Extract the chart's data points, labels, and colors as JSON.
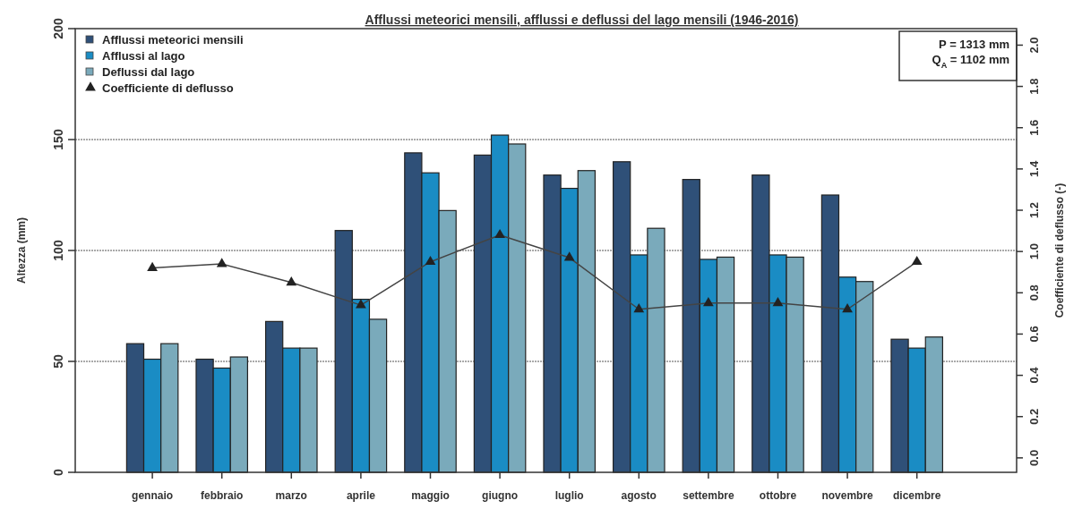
{
  "chart_data": {
    "type": "bar",
    "title": "Afflussi meteorici mensili, afflussi e deflussi del lago mensili  (1946-2016)",
    "ylabel": "Altezza (mm)",
    "y2label": "Coefficiente di deflusso (-)",
    "categories": [
      "gennaio",
      "febbraio",
      "marzo",
      "aprile",
      "maggio",
      "giugno",
      "luglio",
      "agosto",
      "settembre",
      "ottobre",
      "novembre",
      "dicembre"
    ],
    "series": [
      {
        "name": "Afflussi meteorici mensili",
        "color": "#2f5078",
        "values": [
          58,
          51,
          68,
          109,
          144,
          143,
          134,
          140,
          132,
          134,
          125,
          60
        ]
      },
      {
        "name": "Afflussi al lago",
        "color": "#1a8cc4",
        "values": [
          51,
          47,
          56,
          78,
          135,
          152,
          128,
          98,
          96,
          98,
          88,
          56
        ]
      },
      {
        "name": "Deflussi dal lago",
        "color": "#7aaabb",
        "values": [
          58,
          52,
          56,
          69,
          118,
          148,
          136,
          110,
          97,
          97,
          86,
          61
        ]
      },
      {
        "name": "Coefficiente di deflusso",
        "type": "line",
        "axis": "y2",
        "color": "#444444",
        "marker": "triangle",
        "values": [
          0.92,
          0.94,
          0.85,
          0.74,
          0.95,
          1.08,
          0.97,
          0.72,
          0.75,
          0.75,
          0.72,
          0.95
        ]
      }
    ],
    "ylim": [
      0,
      200
    ],
    "yticks": [
      0,
      50,
      100,
      150,
      200
    ],
    "y2lim": [
      -0.07,
      2.08
    ],
    "y2ticks": [
      {
        "value": 0,
        "label": "0.0"
      },
      {
        "value": 0.2,
        "label": "0.2"
      },
      {
        "value": 0.4,
        "label": "0.4"
      },
      {
        "value": 0.6,
        "label": "0.6"
      },
      {
        "value": 0.8,
        "label": "0.8"
      },
      {
        "value": 1,
        "label": "1.0"
      },
      {
        "value": 1.2,
        "label": "1.2"
      },
      {
        "value": 1.4,
        "label": "1.4"
      },
      {
        "value": 1.6,
        "label": "1.6"
      },
      {
        "value": 1.8,
        "label": "1.8"
      },
      {
        "value": 2,
        "label": "2.0"
      }
    ],
    "grid": "y",
    "legend": "top left",
    "annotations": [
      "P = 1313  mm",
      "Q$_{A}$ = 1102 mm"
    ]
  }
}
